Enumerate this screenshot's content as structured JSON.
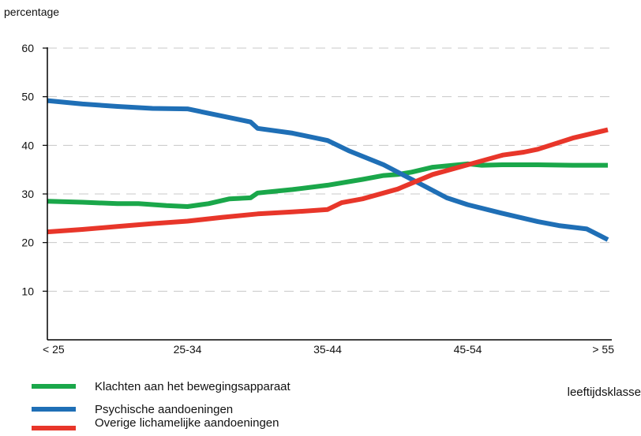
{
  "chart_data": {
    "type": "line",
    "ylabel": "percentage",
    "xlabel": "leeftijdsklasse",
    "x_ticks": [
      "< 25",
      "25-34",
      "35-44",
      "45-54",
      "> 55"
    ],
    "x_tick_positions": [
      0,
      1,
      2,
      3,
      4
    ],
    "xlim": [
      0,
      4
    ],
    "ylim": [
      0,
      60
    ],
    "y_ticks": [
      10,
      20,
      30,
      40,
      50,
      60
    ],
    "grid": "horizontal dashed",
    "legend_position": "bottom-left",
    "series": [
      {
        "name": "Klachten aan het bewegingsapparaat",
        "color": "#1aa74a",
        "x": [
          0,
          0.25,
          0.5,
          0.65,
          0.85,
          1.0,
          1.15,
          1.3,
          1.45,
          1.5,
          1.75,
          2.0,
          2.25,
          2.4,
          2.5,
          2.6,
          2.75,
          3.0,
          3.1,
          3.25,
          3.5,
          3.75,
          4.0
        ],
        "values": [
          28.5,
          28.3,
          28.0,
          28.0,
          27.6,
          27.4,
          28.0,
          29.0,
          29.2,
          30.2,
          30.9,
          31.8,
          33.0,
          33.8,
          34.0,
          34.5,
          35.5,
          36.2,
          35.9,
          36.0,
          36.0,
          35.9,
          35.9
        ]
      },
      {
        "name": "Psychische aandoeningen",
        "color": "#1f6fb6",
        "x": [
          0,
          0.25,
          0.5,
          0.75,
          1.0,
          1.25,
          1.45,
          1.5,
          1.75,
          2.0,
          2.15,
          2.4,
          2.6,
          2.85,
          3.0,
          3.25,
          3.5,
          3.65,
          3.85,
          4.0
        ],
        "values": [
          49.2,
          48.5,
          48.0,
          47.6,
          47.5,
          46.0,
          44.8,
          43.5,
          42.5,
          41.0,
          38.9,
          36.0,
          33.0,
          29.2,
          27.8,
          26.0,
          24.3,
          23.5,
          22.8,
          20.6
        ]
      },
      {
        "name": "Overige lichamelijke aandoeningen",
        "color": "#e8362a",
        "x": [
          0,
          0.25,
          0.5,
          0.75,
          1.0,
          1.25,
          1.5,
          1.75,
          2.0,
          2.1,
          2.25,
          2.5,
          2.75,
          3.0,
          3.25,
          3.4,
          3.5,
          3.75,
          4.0
        ],
        "values": [
          22.2,
          22.7,
          23.3,
          23.9,
          24.4,
          25.2,
          25.9,
          26.3,
          26.8,
          28.2,
          29.0,
          31.0,
          34.0,
          36.0,
          38.0,
          38.6,
          39.2,
          41.5,
          43.2
        ]
      }
    ]
  }
}
